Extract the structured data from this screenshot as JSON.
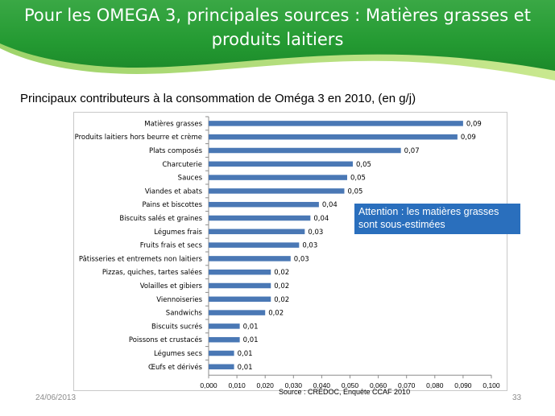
{
  "slide": {
    "title_line1": "Pour les OMEGA 3, principales sources : Matières grasses et",
    "title_line2": "produits laitiers",
    "date": "24/06/2013",
    "page_number": "33"
  },
  "callout": {
    "line1": "Attention : les matières grasses",
    "line2": "sont sous-estimées"
  },
  "source_text": "Source : CRÉDOC, Enquête  CCAF 2010",
  "colors": {
    "bar": "#4a78b5",
    "callout": "#2a6fbd",
    "header_green": "#2e9a38"
  },
  "chart_data": {
    "type": "bar",
    "orientation": "horizontal",
    "title": "Principaux contributeurs à la consommation de Oméga 3 en 2010, (en g/j)",
    "categories": [
      "Matières grasses",
      "Produits laitiers hors beurre et crème",
      "Plats composés",
      "Charcuterie",
      "Sauces",
      "Viandes et abats",
      "Pains et biscottes",
      "Biscuits salés et graines",
      "Légumes frais",
      "Fruits frais et secs",
      "Pâtisseries et entremets non laitiers",
      "Pizzas, quiches, tartes salées",
      "Volailles et gibiers",
      "Viennoiseries",
      "Sandwichs",
      "Biscuits sucrés",
      "Poissons et crustacés",
      "Légumes secs",
      "Œufs et dérivés"
    ],
    "values": [
      0.09,
      0.088,
      0.068,
      0.051,
      0.049,
      0.048,
      0.039,
      0.036,
      0.034,
      0.032,
      0.029,
      0.022,
      0.022,
      0.022,
      0.02,
      0.011,
      0.011,
      0.009,
      0.009
    ],
    "data_labels": [
      "0,09",
      "0,09",
      "0,07",
      "0,05",
      "0,05",
      "0,05",
      "0,04",
      "0,04",
      "0,03",
      "0,03",
      "0,03",
      "0,02",
      "0,02",
      "0,02",
      "0,02",
      "0,01",
      "0,01",
      "0,01",
      "0,01"
    ],
    "xlim": [
      0,
      0.1
    ],
    "x_ticks": [
      "0,000",
      "0,010",
      "0,020",
      "0,030",
      "0,040",
      "0,050",
      "0,060",
      "0,070",
      "0,080",
      "0,090",
      "0,100"
    ],
    "xlabel": "",
    "ylabel": "",
    "grid": false,
    "legend": "none"
  }
}
